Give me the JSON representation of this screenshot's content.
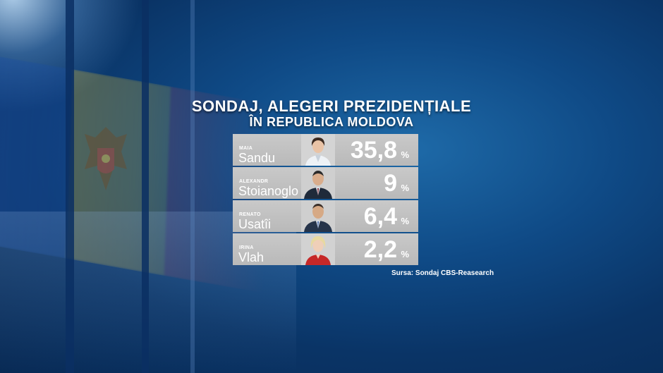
{
  "header": {
    "title": "SONDAJ, ALEGERI PREZIDENȚIALE",
    "subtitle": "ÎN REPUBLICA MOLDOVA"
  },
  "source": "Sursa: Sondaj CBS-Reasearch",
  "colors": {
    "row_bg": "#bdbdbd",
    "text": "#ffffff",
    "background": "#0f4a86"
  },
  "chart_data": {
    "type": "table",
    "unit": "%",
    "rows": [
      {
        "first_name": "MAIA",
        "last_name": "Sandu",
        "value": "35,8"
      },
      {
        "first_name": "ALEXANDR",
        "last_name": "Stoianoglo",
        "value": "9"
      },
      {
        "first_name": "RENATO",
        "last_name": "Usatîi",
        "value": "6,4"
      },
      {
        "first_name": "IRINA",
        "last_name": "Vlah",
        "value": "2,2"
      }
    ]
  }
}
